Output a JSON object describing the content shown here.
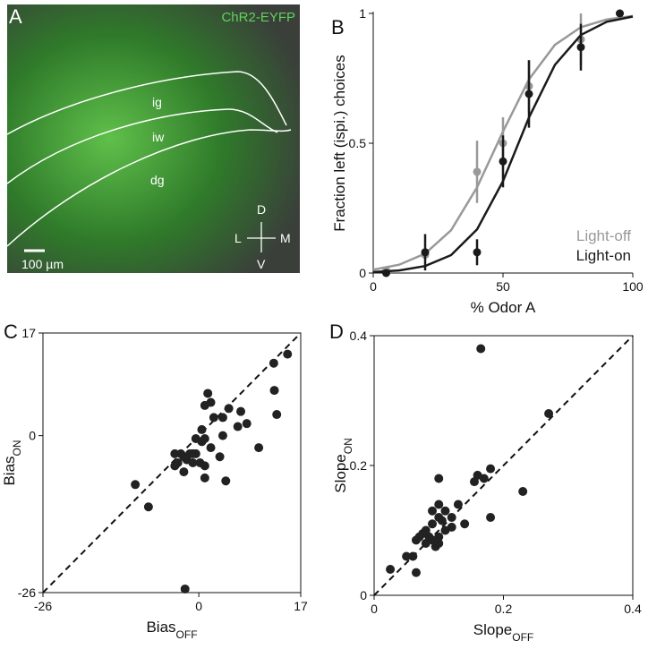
{
  "image_panel": {
    "label": "A",
    "title": "ChR2-EYFP",
    "regions": [
      "ig",
      "iw",
      "dg"
    ],
    "compass": [
      "D",
      "L",
      "M",
      "V"
    ],
    "scale_bar": "100 µm"
  },
  "chart_data": [
    {
      "type": "line",
      "panel_label": "B",
      "xlabel": "% Odor A",
      "ylabel": "Fraction left (ispi.) choices",
      "x": [
        5,
        20,
        40,
        50,
        60,
        80,
        95
      ],
      "xlim": [
        0,
        100
      ],
      "xticks": [
        0,
        50,
        100
      ],
      "ylim": [
        0,
        1
      ],
      "yticks": [
        0,
        0.5,
        1
      ],
      "legend": "lower right",
      "fit_x": [
        0,
        10,
        20,
        30,
        40,
        50,
        60,
        70,
        80,
        90,
        100
      ],
      "series": [
        {
          "name": "Light-off",
          "color": "#999999",
          "values": [
            0.01,
            0.07,
            0.39,
            0.5,
            0.72,
            0.9,
            1
          ],
          "errors": [
            0,
            0,
            0.12,
            0.1,
            0.1,
            0.1,
            0
          ],
          "fit_values": [
            0.013,
            0.032,
            0.075,
            0.165,
            0.33,
            0.545,
            0.746,
            0.879,
            0.947,
            0.977,
            0.99
          ]
        },
        {
          "name": "Light-on",
          "color": "#1a1a1a",
          "values": [
            0,
            0.08,
            0.08,
            0.43,
            0.69,
            0.87,
            1
          ],
          "errors": [
            0,
            0.07,
            0.05,
            0.1,
            0.13,
            0.09,
            0
          ],
          "fit_values": [
            0.004,
            0.01,
            0.027,
            0.069,
            0.168,
            0.354,
            0.599,
            0.802,
            0.917,
            0.968,
            0.988
          ]
        }
      ]
    },
    {
      "type": "scatter",
      "panel_label": "C",
      "xlabel": "Bias",
      "xlabel_sub": "OFF",
      "ylabel": "Bias",
      "ylabel_sub": "ON",
      "color": "#222222",
      "xlim": [
        -26,
        17
      ],
      "ylim": [
        -26,
        17
      ],
      "xticks": [
        -26,
        0,
        17
      ],
      "yticks": [
        -26,
        0,
        17
      ],
      "diagonal": true,
      "x": [
        12.5,
        14.8,
        12.6,
        13,
        10,
        8,
        7,
        6.5,
        5,
        4,
        4,
        4.5,
        3.5,
        2,
        1,
        1.5,
        0.5,
        0.5,
        0.2,
        -0.5,
        -0.5,
        1,
        1,
        2,
        -1,
        -2,
        -1.5,
        -3,
        -4,
        -4,
        -3.5,
        -2.5,
        -2.5,
        -1,
        1,
        -10.6,
        -8.4,
        -2.3,
        2.5
      ],
      "values": [
        12,
        13.5,
        7.5,
        3.5,
        -2,
        2,
        4,
        1.5,
        4.5,
        3,
        0,
        -7.5,
        -3.5,
        5.5,
        5,
        7,
        1,
        -1,
        -4.5,
        -3,
        -0.5,
        -0.5,
        -5,
        -2,
        -3,
        -4,
        -3,
        -3,
        -3,
        -5,
        -4.5,
        -3.5,
        -6,
        -4.5,
        -7,
        -8.1,
        -11.8,
        -25.4,
        3
      ]
    },
    {
      "type": "scatter",
      "panel_label": "D",
      "xlabel": "Slope",
      "xlabel_sub": "OFF",
      "ylabel": "Slope",
      "ylabel_sub": "ON",
      "color": "#222222",
      "xlim": [
        0,
        0.4
      ],
      "ylim": [
        0,
        0.4
      ],
      "xticks": [
        0,
        0.2,
        0.4
      ],
      "yticks": [
        0,
        0.2,
        0.4
      ],
      "diagonal": true,
      "x": [
        0.165,
        0.27,
        0.23,
        0.18,
        0.18,
        0.16,
        0.17,
        0.155,
        0.1,
        0.13,
        0.14,
        0.12,
        0.11,
        0.1,
        0.09,
        0.1,
        0.09,
        0.08,
        0.07,
        0.065,
        0.075,
        0.085,
        0.09,
        0.1,
        0.1,
        0.11,
        0.12,
        0.08,
        0.06,
        0.05,
        0.065,
        0.025,
        0.095,
        0.105
      ],
      "values": [
        0.38,
        0.28,
        0.16,
        0.195,
        0.12,
        0.185,
        0.18,
        0.175,
        0.18,
        0.14,
        0.11,
        0.12,
        0.13,
        0.14,
        0.13,
        0.12,
        0.11,
        0.1,
        0.09,
        0.085,
        0.095,
        0.09,
        0.085,
        0.08,
        0.09,
        0.1,
        0.105,
        0.08,
        0.06,
        0.06,
        0.035,
        0.04,
        0.075,
        0.115
      ]
    }
  ]
}
